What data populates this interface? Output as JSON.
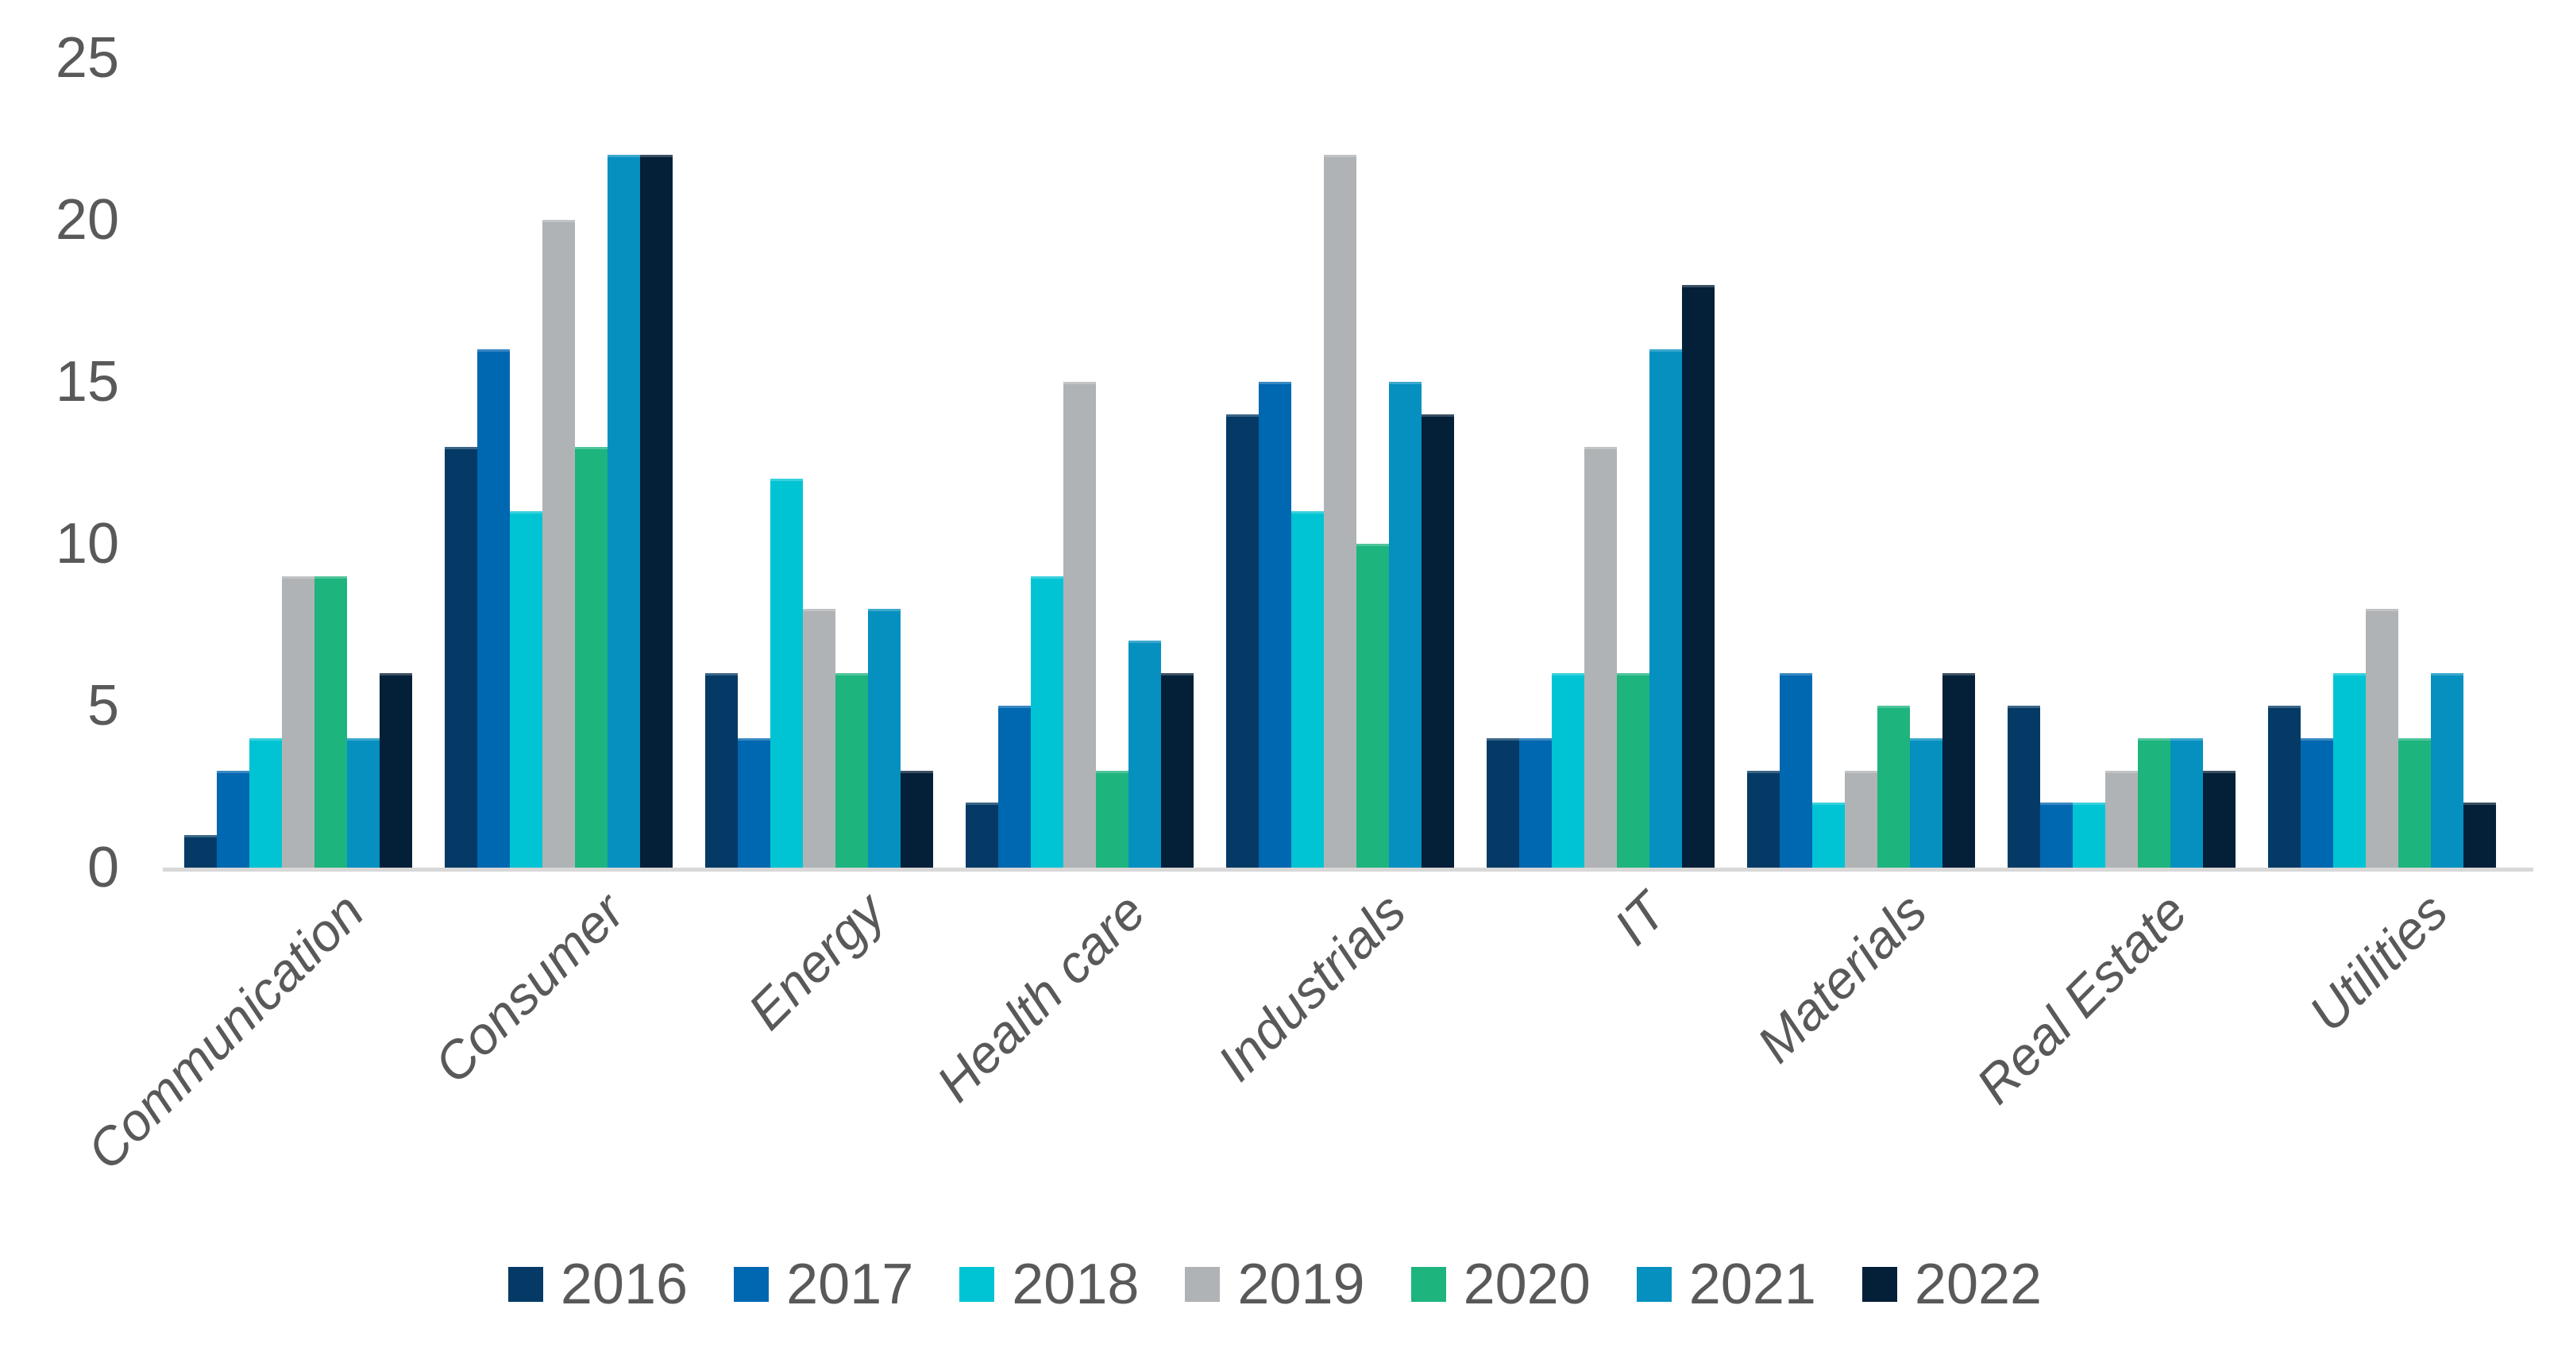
{
  "chart_data": {
    "type": "bar",
    "title": "",
    "xlabel": "",
    "ylabel": "",
    "ylim": [
      0,
      25
    ],
    "yticks": [
      0,
      5,
      10,
      15,
      20,
      25
    ],
    "grid": false,
    "legend_position": "bottom",
    "text_color": "#595959",
    "axis_line_color": "#d8d8d8",
    "categories": [
      "Communication",
      "Consumer",
      "Energy",
      "Health care",
      "Industrials",
      "IT",
      "Materials",
      "Real Estate",
      "Utilities"
    ],
    "series": [
      {
        "name": "2016",
        "color": "#043a65",
        "values": [
          1,
          13,
          6,
          2,
          14,
          4,
          3,
          5,
          5
        ]
      },
      {
        "name": "2017",
        "color": "#0067b1",
        "values": [
          3,
          16,
          4,
          5,
          15,
          4,
          6,
          2,
          4
        ]
      },
      {
        "name": "2018",
        "color": "#00c4d4",
        "values": [
          4,
          11,
          12,
          9,
          11,
          6,
          2,
          2,
          6
        ]
      },
      {
        "name": "2019",
        "color": "#b0b3b5",
        "values": [
          9,
          20,
          8,
          15,
          22,
          13,
          3,
          3,
          8
        ]
      },
      {
        "name": "2020",
        "color": "#1eb47e",
        "values": [
          9,
          13,
          6,
          3,
          10,
          6,
          5,
          4,
          4
        ]
      },
      {
        "name": "2021",
        "color": "#0590c0",
        "values": [
          4,
          22,
          8,
          7,
          15,
          16,
          4,
          4,
          6
        ]
      },
      {
        "name": "2022",
        "color": "#041f38",
        "values": [
          6,
          22,
          3,
          6,
          14,
          18,
          6,
          3,
          2
        ]
      }
    ]
  },
  "layout_note_values_visible_only": true
}
